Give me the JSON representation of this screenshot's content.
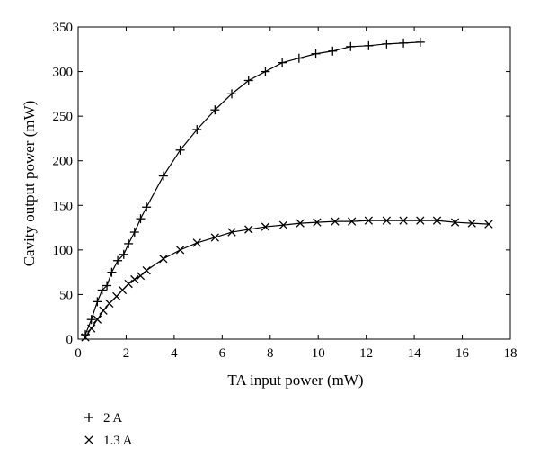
{
  "chart_data": {
    "type": "line",
    "title": "",
    "xlabel": "TA input power (mW)",
    "ylabel": "Cavity output power (mW)",
    "xlim": [
      0,
      18
    ],
    "ylim": [
      0,
      350
    ],
    "xticks": [
      0,
      2,
      4,
      6,
      8,
      10,
      12,
      14,
      16,
      18
    ],
    "yticks": [
      0,
      50,
      100,
      150,
      200,
      250,
      300,
      350
    ],
    "grid": false,
    "legend_position": "below-left",
    "series": [
      {
        "name": "2 A",
        "marker": "plus",
        "color": "#000000",
        "x": [
          0.3,
          0.55,
          0.8,
          1.0,
          1.2,
          1.4,
          1.65,
          1.9,
          2.1,
          2.35,
          2.6,
          2.85,
          3.55,
          4.25,
          4.95,
          5.7,
          6.4,
          7.1,
          7.8,
          8.5,
          9.2,
          9.9,
          10.6,
          11.35,
          12.1,
          12.85,
          13.55,
          14.25
        ],
        "y": [
          5,
          22,
          42,
          55,
          60,
          75,
          88,
          95,
          107,
          120,
          135,
          148,
          183,
          212,
          235,
          257,
          275,
          290,
          300,
          310,
          315,
          320,
          323,
          328,
          329,
          331,
          332,
          333
        ]
      },
      {
        "name": "1.3 A",
        "marker": "x",
        "color": "#000000",
        "x": [
          0.3,
          0.55,
          0.8,
          1.05,
          1.3,
          1.6,
          1.85,
          2.1,
          2.35,
          2.6,
          2.85,
          3.55,
          4.25,
          4.95,
          5.7,
          6.4,
          7.1,
          7.8,
          8.55,
          9.25,
          9.95,
          10.7,
          11.4,
          12.1,
          12.85,
          13.55,
          14.25,
          14.95,
          15.7,
          16.4,
          17.1
        ],
        "y": [
          2,
          12,
          22,
          32,
          40,
          48,
          55,
          62,
          67,
          71,
          77,
          90,
          100,
          108,
          114,
          120,
          123,
          126,
          128,
          130,
          131,
          132,
          132,
          133,
          133,
          133,
          133,
          133,
          131,
          130,
          129
        ]
      }
    ]
  }
}
